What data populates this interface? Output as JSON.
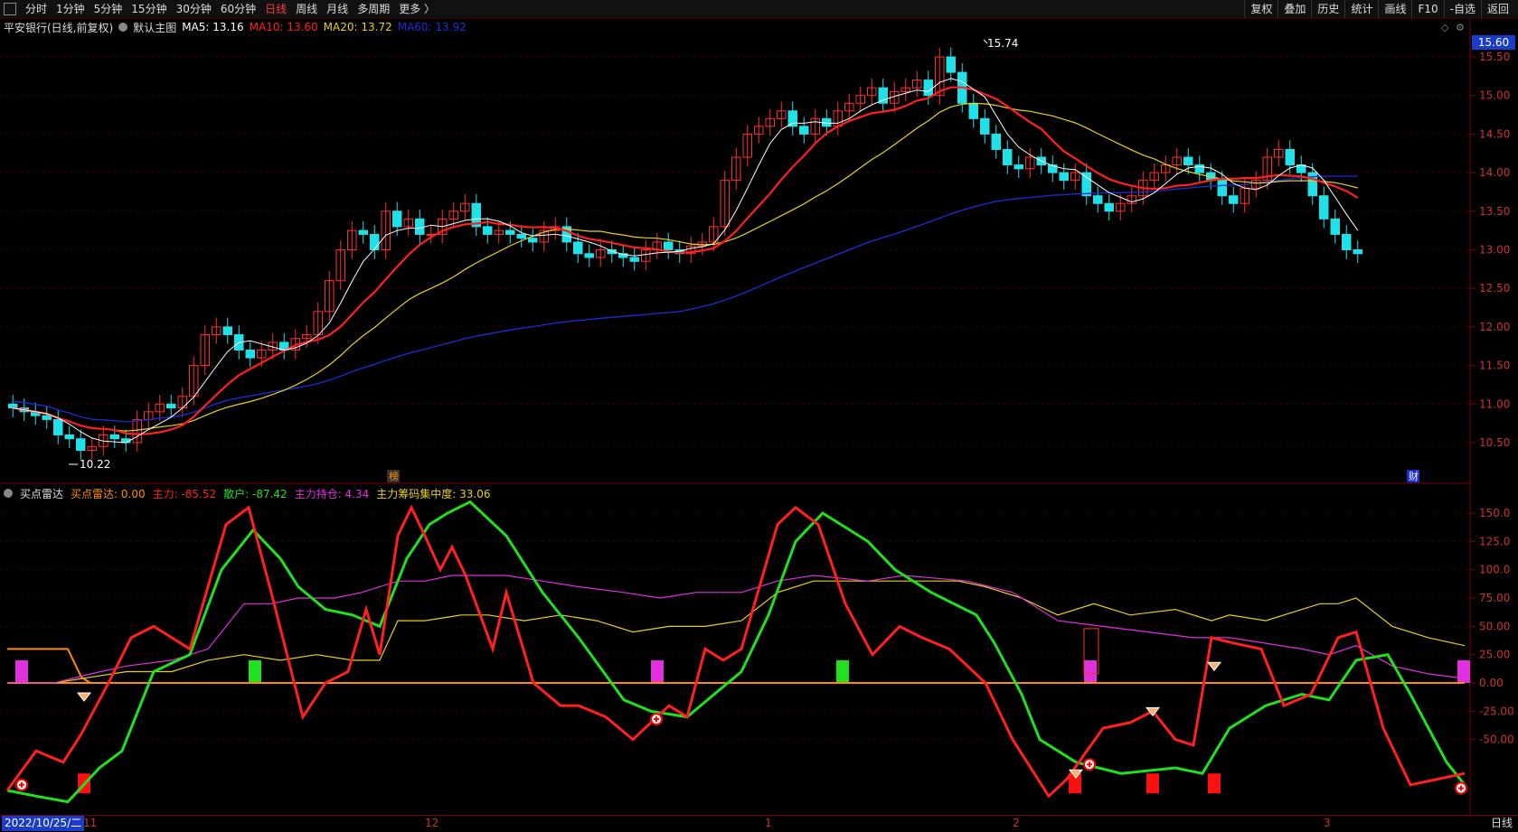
{
  "toolbar": {
    "periods": [
      "分时",
      "1分钟",
      "5分钟",
      "15分钟",
      "30分钟",
      "60分钟",
      "日线",
      "周线",
      "月线",
      "多周期",
      "更多 〉"
    ],
    "active_period": "日线",
    "right_buttons": [
      "复权",
      "叠加",
      "历史",
      "统计",
      "画线",
      "F10",
      "-自选",
      "返回"
    ]
  },
  "price_panel": {
    "title": "平安银行(日线,前复权)",
    "template": "默认主图",
    "ma5": {
      "label": "MA5: 13.16",
      "color": "#ffffff"
    },
    "ma10": {
      "label": "MA10: 13.60",
      "color": "#ff2020"
    },
    "ma20": {
      "label": "MA20: 13.72",
      "color": "#e8d020"
    },
    "ma60": {
      "label": "MA60: 13.92",
      "color": "#1a2fd8"
    },
    "price_badge": "15.60",
    "high_label": "15.74",
    "low_label": "10.22",
    "y_ticks": [
      "15.50",
      "15.00",
      "14.50",
      "14.00",
      "13.50",
      "13.00",
      "12.50",
      "12.00",
      "11.50",
      "11.00",
      "10.50"
    ],
    "marker_a": "榜",
    "marker_b": "财"
  },
  "indicator_panel": {
    "name": "买点雷达",
    "buy_radar": {
      "label": "买点雷达: 0.00",
      "color": "#ff8c00"
    },
    "main_force": {
      "label": "主力: -85.52",
      "color": "#ff2020"
    },
    "retail": {
      "label": "散户: -87.42",
      "color": "#20e020"
    },
    "holding": {
      "label": "主力持仓: 4.34",
      "color": "#e030e0"
    },
    "concentration": {
      "label": "主力筹码集中度: 33.06",
      "color": "#e8d020"
    },
    "y_ticks": [
      "150.0",
      "125.0",
      "100.0",
      "75.00",
      "50.00",
      "25.00",
      "0.00",
      "-25.00",
      "-50.00"
    ]
  },
  "x_axis": {
    "date_box": "2022/10/25/二",
    "labels": [
      "11",
      "12",
      "1",
      "2",
      "3"
    ],
    "right_label": "日线"
  }
}
